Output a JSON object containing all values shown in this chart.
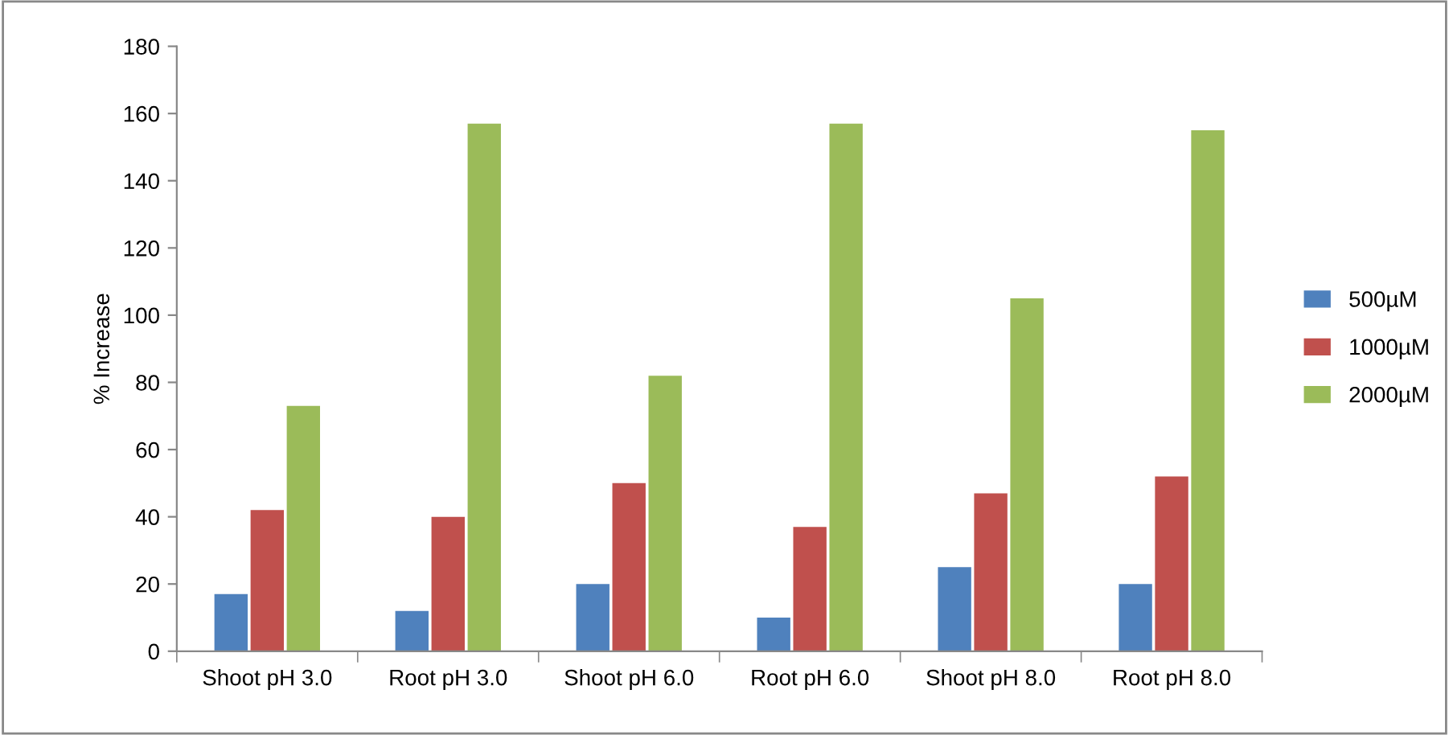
{
  "chart_data": {
    "type": "bar",
    "ylabel": "% Increase",
    "categories": [
      "Shoot pH 3.0",
      "Root pH 3.0",
      "Shoot pH 6.0",
      "Root pH 6.0",
      "Shoot pH 8.0",
      "Root pH 8.0"
    ],
    "series": [
      {
        "name": "500µM",
        "color": "#4f81bd",
        "values": [
          17,
          12,
          20,
          10,
          25,
          20
        ]
      },
      {
        "name": "1000µM",
        "color": "#c0504d",
        "values": [
          42,
          40,
          50,
          37,
          47,
          52
        ]
      },
      {
        "name": "2000µM",
        "color": "#9bbb59",
        "values": [
          73,
          157,
          82,
          157,
          105,
          155
        ]
      }
    ],
    "ylim": [
      0,
      180
    ],
    "yticks": [
      0,
      20,
      40,
      60,
      80,
      100,
      120,
      140,
      160,
      180
    ],
    "grid": false,
    "legend": "right"
  }
}
